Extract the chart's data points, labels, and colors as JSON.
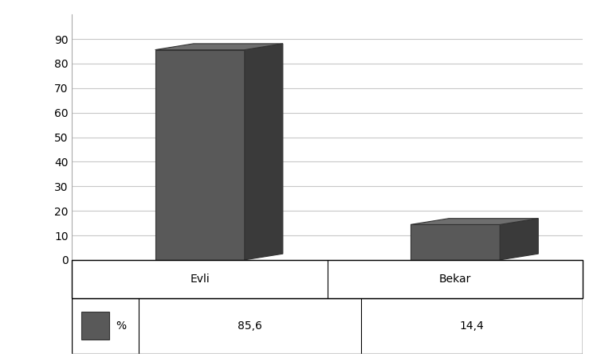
{
  "categories": [
    "Evli",
    "Bekar"
  ],
  "values": [
    85.6,
    14.4
  ],
  "bar_color_face": "#595959",
  "bar_color_side": "#3a3a3a",
  "bar_color_top": "#6e6e6e",
  "bar_edge_color": "#333333",
  "background_color": "#ffffff",
  "ylim": [
    0,
    100
  ],
  "yticks": [
    0,
    10,
    20,
    30,
    40,
    50,
    60,
    70,
    80,
    90
  ],
  "legend_label": "%",
  "legend_values": [
    "85,6",
    "14,4"
  ],
  "grid_color": "#c8c8c8",
  "figsize": [
    7.54,
    4.54
  ],
  "dpi": 100,
  "bar_width": 0.35,
  "depth": 0.12
}
